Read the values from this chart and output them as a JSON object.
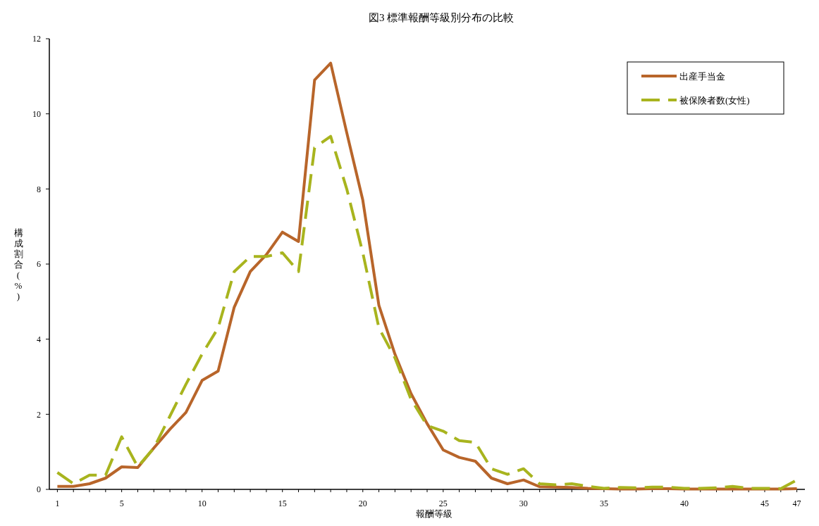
{
  "chart_data": {
    "type": "line",
    "title": "図3 標準報酬等級別分布の比較",
    "xlabel": "報酬等級",
    "ylabel": "構成割合(%)",
    "x": [
      1,
      2,
      3,
      4,
      5,
      6,
      7,
      8,
      9,
      10,
      11,
      12,
      13,
      14,
      15,
      16,
      17,
      18,
      19,
      20,
      21,
      22,
      23,
      24,
      25,
      26,
      27,
      28,
      29,
      30,
      31,
      32,
      33,
      34,
      35,
      36,
      37,
      38,
      39,
      40,
      41,
      42,
      43,
      44,
      45,
      46,
      47
    ],
    "series": [
      {
        "name": "出産手当金",
        "color": "#b8652a",
        "line_style": "solid",
        "values": [
          0.08,
          0.08,
          0.15,
          0.3,
          0.6,
          0.58,
          1.1,
          1.6,
          2.05,
          2.9,
          3.15,
          4.85,
          5.8,
          6.25,
          6.85,
          6.6,
          10.9,
          11.35,
          9.5,
          7.7,
          4.9,
          3.6,
          2.55,
          1.75,
          1.05,
          0.85,
          0.75,
          0.3,
          0.15,
          0.25,
          0.07,
          0.06,
          0.05,
          0.03,
          0.02,
          0.01,
          0.01,
          0.02,
          0.02,
          0.01,
          0.01,
          0.01,
          0.01,
          0.01,
          0.01,
          0.01,
          0.02
        ]
      },
      {
        "name": "被保険者数(女性)",
        "color": "#a8b41e",
        "line_style": "dashed",
        "values": [
          0.45,
          0.15,
          0.38,
          0.38,
          1.4,
          0.6,
          1.1,
          1.95,
          2.8,
          3.6,
          4.3,
          5.8,
          6.2,
          6.2,
          6.3,
          5.8,
          9.1,
          9.4,
          8.0,
          6.3,
          4.3,
          3.5,
          2.4,
          1.7,
          1.55,
          1.3,
          1.25,
          0.55,
          0.4,
          0.55,
          0.15,
          0.12,
          0.15,
          0.08,
          0.03,
          0.05,
          0.04,
          0.06,
          0.06,
          0.03,
          0.03,
          0.04,
          0.08,
          0.03,
          0.03,
          0.02,
          0.25
        ]
      }
    ],
    "xlim": [
      0.5,
      47.5
    ],
    "xticks": [
      1,
      5,
      10,
      15,
      20,
      25,
      30,
      35,
      40,
      45,
      47
    ],
    "ylim": [
      0,
      12
    ],
    "yticks": [
      0,
      2,
      4,
      6,
      8,
      10,
      12
    ],
    "grid": false,
    "legend": "top right",
    "marker": "none"
  }
}
